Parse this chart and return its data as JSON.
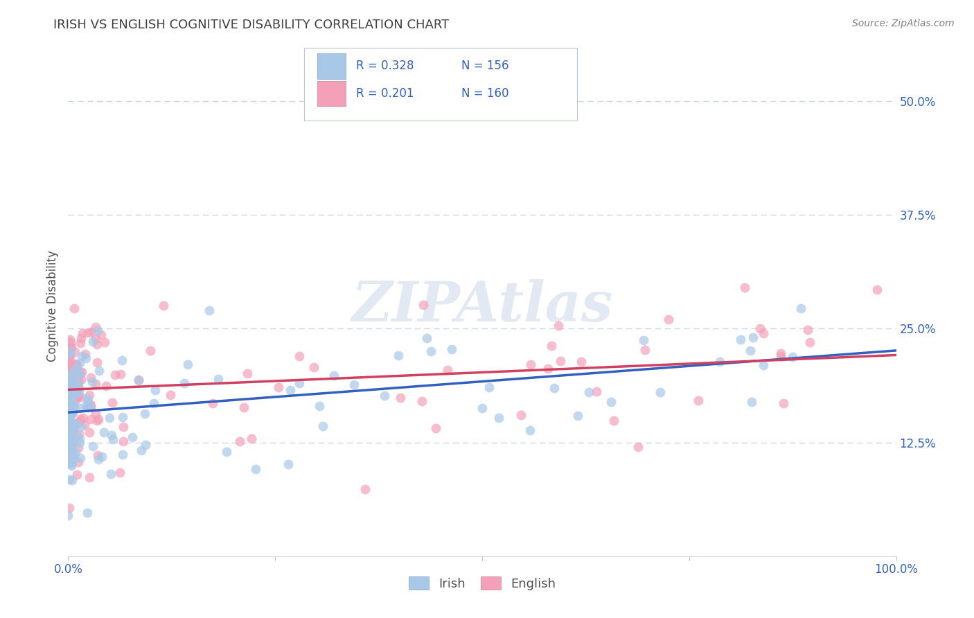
{
  "title": "IRISH VS ENGLISH COGNITIVE DISABILITY CORRELATION CHART",
  "source": "Source: ZipAtlas.com",
  "ylabel": "Cognitive Disability",
  "x_min": 0.0,
  "x_max": 1.0,
  "y_min": 0.0,
  "y_max": 0.55,
  "x_ticks": [
    0.0,
    0.25,
    0.5,
    0.75,
    1.0
  ],
  "x_tick_labels": [
    "0.0%",
    "",
    "",
    "",
    "100.0%"
  ],
  "y_ticks": [
    0.125,
    0.25,
    0.375,
    0.5
  ],
  "y_tick_labels": [
    "12.5%",
    "25.0%",
    "37.5%",
    "50.0%"
  ],
  "irish_color": "#a8c8e8",
  "english_color": "#f4a0b8",
  "irish_line_color": "#3060C0",
  "english_line_color": "#D04060",
  "R_irish": 0.328,
  "N_irish": 156,
  "R_english": 0.201,
  "N_english": 160,
  "irish_slope": 0.068,
  "irish_intercept": 0.158,
  "english_slope": 0.038,
  "english_intercept": 0.183,
  "watermark": "ZIPAtlas",
  "background_color": "#ffffff",
  "grid_color": "#c8d8e8",
  "title_color": "#404040",
  "legend_color": "#3060C0",
  "axis_label_color": "#505050",
  "tick_label_color": "#3060C0",
  "source_color": "#808080"
}
